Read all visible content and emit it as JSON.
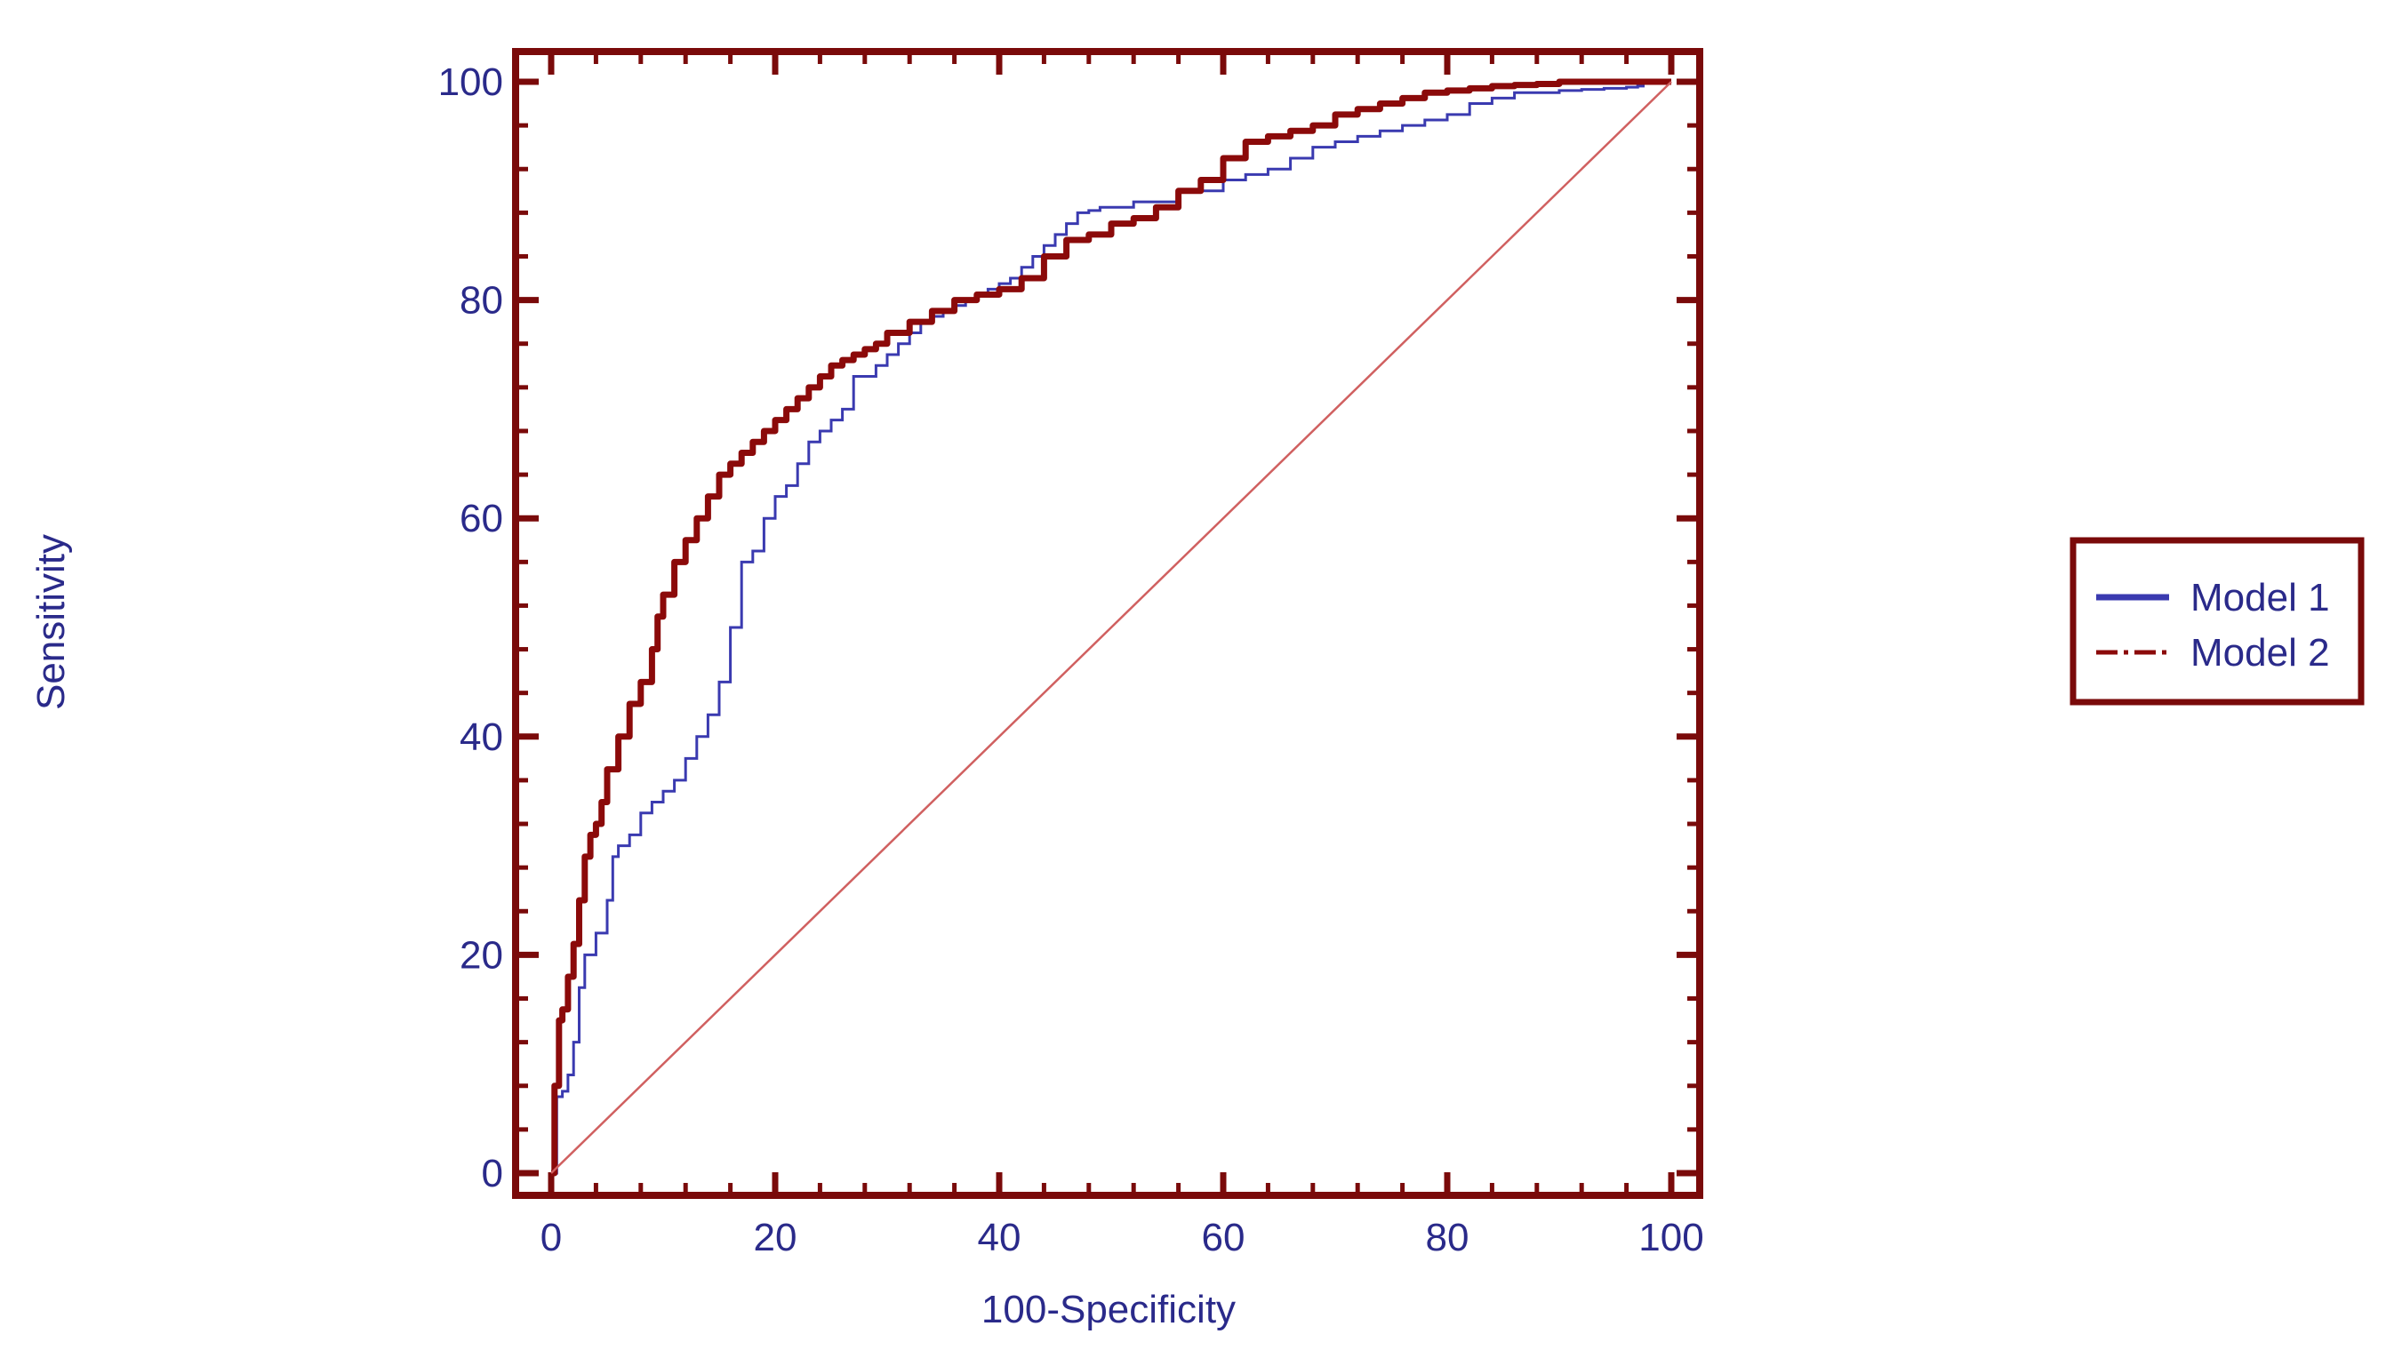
{
  "chart_data": {
    "type": "line",
    "title": "",
    "xlabel": "100-Specificity",
    "ylabel": "Sensitivity",
    "xlim": [
      0,
      100
    ],
    "ylim": [
      0,
      100
    ],
    "xticks": [
      0,
      20,
      40,
      60,
      80,
      100
    ],
    "yticks": [
      0,
      20,
      40,
      60,
      80,
      100
    ],
    "grid": false,
    "legend_position": "right",
    "colors": {
      "axis": "#7a0a0a",
      "tick_text": "#2a2a8a",
      "model_1": "#3a3ab0",
      "model_2": "#8b0a0a",
      "reference": "#d06060"
    },
    "series": [
      {
        "name": "Model 1",
        "style": "solid",
        "x": [
          0,
          0.5,
          0.5,
          1,
          1.5,
          2,
          2.5,
          3,
          4,
          5,
          5.5,
          6,
          7,
          8,
          9,
          10,
          11,
          12,
          13,
          14,
          15,
          16,
          17,
          18,
          19,
          20,
          21,
          22,
          23,
          24,
          25,
          26,
          27,
          28,
          29,
          30,
          31,
          32,
          33,
          34,
          35,
          36,
          37,
          38,
          39,
          40,
          41,
          42,
          43,
          44,
          45,
          46,
          47,
          48,
          49,
          50,
          52,
          54,
          56,
          58,
          60,
          62,
          64,
          66,
          68,
          70,
          72,
          74,
          76,
          78,
          80,
          82,
          84,
          86,
          88,
          90,
          92,
          94,
          96,
          97,
          97.5,
          100
        ],
        "y": [
          0,
          0,
          7,
          7.5,
          9,
          12,
          17,
          20,
          22,
          25,
          29,
          30,
          31,
          33,
          34,
          35,
          36,
          38,
          40,
          42,
          45,
          50,
          56,
          57,
          60,
          62,
          63,
          65,
          67,
          68,
          69,
          70,
          73,
          73,
          74,
          75,
          76,
          77,
          78,
          78.5,
          79,
          79.5,
          80,
          80.5,
          81,
          81.5,
          82,
          83,
          84,
          85,
          86,
          87,
          88,
          88.2,
          88.5,
          88.5,
          89,
          89,
          90,
          90,
          91,
          91.5,
          92,
          93,
          94,
          94.5,
          95,
          95.5,
          96,
          96.5,
          97,
          98,
          98.5,
          99,
          99,
          99.2,
          99.3,
          99.4,
          99.5,
          99.6,
          100,
          100
        ]
      },
      {
        "name": "Model 2",
        "style": "dash-dot",
        "x": [
          0,
          0.3,
          0.3,
          0.7,
          1,
          1.5,
          2,
          2.5,
          3,
          3.5,
          4,
          4.5,
          5,
          6,
          7,
          8,
          9,
          9.5,
          10,
          11,
          12,
          13,
          14,
          15,
          16,
          17,
          18,
          19,
          20,
          21,
          22,
          23,
          24,
          25,
          26,
          27,
          28,
          29,
          30,
          32,
          34,
          36,
          38,
          40,
          42,
          44,
          46,
          48,
          50,
          52,
          54,
          56,
          58,
          60,
          62,
          64,
          66,
          68,
          70,
          72,
          74,
          76,
          78,
          80,
          82,
          84,
          86,
          88,
          90,
          92,
          94,
          96,
          98,
          100
        ],
        "y": [
          0,
          0,
          8,
          14,
          15,
          18,
          21,
          25,
          29,
          31,
          32,
          34,
          37,
          40,
          43,
          45,
          48,
          51,
          53,
          56,
          58,
          60,
          62,
          64,
          65,
          66,
          67,
          68,
          69,
          70,
          71,
          72,
          73,
          74,
          74.5,
          75,
          75.5,
          76,
          77,
          78,
          79,
          80,
          80.5,
          81,
          82,
          84,
          85.5,
          86,
          87,
          87.5,
          88.5,
          90,
          91,
          93,
          94.5,
          95,
          95.5,
          96,
          97,
          97.5,
          98,
          98.5,
          99,
          99.2,
          99.4,
          99.6,
          99.7,
          99.8,
          100,
          100,
          100,
          100,
          100,
          100
        ]
      },
      {
        "name": "",
        "style": "reference",
        "x": [
          0,
          100
        ],
        "y": [
          0,
          100
        ]
      }
    ],
    "legend": {
      "entries": [
        "Model 1",
        "Model 2"
      ]
    }
  }
}
